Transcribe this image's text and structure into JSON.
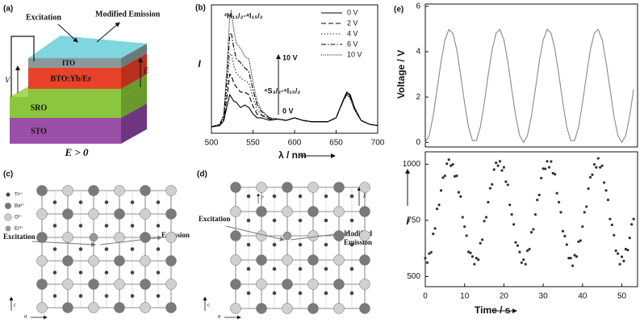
{
  "panels": {
    "a": {
      "label": "(a)",
      "layers": [
        "ITO",
        "BTO:Yb/Er",
        "SRO",
        "STO"
      ],
      "excitation": "Excitation",
      "emission": "Modified Emission",
      "voltage": "V",
      "field": "E",
      "condition": "E > 0"
    },
    "c": {
      "label": "(c)",
      "legend": [
        "Ti⁴⁺",
        "Ba²⁺",
        "O²⁻",
        "Er³⁺"
      ],
      "excitation": "Excitation",
      "emission": "Emission",
      "axis_c": "c",
      "axis_a": "a"
    },
    "d": {
      "label": "(d)",
      "excitation": "Excitation",
      "emission_lines": [
        "Modified",
        "Emission"
      ],
      "field": "E",
      "polarization": "P",
      "axis_c": "c",
      "axis_a": "a"
    }
  },
  "chart_data": [
    {
      "type": "line",
      "panel_label": "(b)",
      "xlabel": "λ / nm",
      "ylabel": "I",
      "x": [
        500,
        510,
        515,
        519,
        522,
        524,
        527,
        530,
        535,
        540,
        545,
        550,
        555,
        560,
        570,
        580,
        590,
        600,
        610,
        620,
        630,
        640,
        650,
        655,
        660,
        663,
        667,
        672,
        680,
        690,
        700
      ],
      "xlim": [
        500,
        700
      ],
      "xticks": [
        500,
        550,
        600,
        650,
        700
      ],
      "ylim": [
        0,
        100
      ],
      "annotations": [
        "²H₁₁/₂-⁴I₁₅/₂",
        "⁴S₃/₂-⁴I₁₅/₂",
        "10 V",
        "0 V"
      ],
      "legend": "upper right",
      "series": [
        {
          "name": "0 V",
          "color": "#000000",
          "dash": "solid",
          "values": [
            5,
            6,
            10,
            22,
            30,
            28,
            25,
            24,
            20,
            22,
            20,
            15,
            12,
            12,
            10,
            11,
            10,
            12,
            10,
            9,
            9,
            9,
            12,
            20,
            28,
            32,
            30,
            20,
            10,
            7,
            6
          ]
        },
        {
          "name": "2 V",
          "color": "#000000",
          "dash": "dashed",
          "values": [
            5,
            6,
            11,
            30,
            46,
            45,
            39,
            36,
            32,
            32,
            30,
            21,
            15,
            14,
            11,
            11,
            10,
            12,
            10,
            9,
            9,
            9,
            12,
            20,
            28,
            32,
            29,
            20,
            10,
            7,
            6
          ]
        },
        {
          "name": "4 V",
          "color": "#000000",
          "dash": "dotted",
          "values": [
            5,
            6,
            12,
            38,
            61,
            62,
            52,
            47,
            43,
            41,
            39,
            28,
            18,
            15,
            11,
            11,
            10,
            12,
            10,
            9,
            9,
            9,
            12,
            20,
            28,
            31,
            29,
            19,
            10,
            7,
            6
          ]
        },
        {
          "name": "6 V",
          "color": "#000000",
          "dash": "dashdot",
          "values": [
            5,
            7,
            14,
            47,
            77,
            78,
            66,
            58,
            55,
            51,
            48,
            34,
            22,
            17,
            12,
            11,
            10,
            12,
            10,
            9,
            9,
            9,
            12,
            20,
            27,
            31,
            28,
            19,
            10,
            7,
            6
          ]
        },
        {
          "name": "10 V",
          "color": "#000000",
          "dash": "densedot",
          "values": [
            5,
            7,
            15,
            55,
            92,
            95,
            80,
            70,
            66,
            60,
            58,
            40,
            25,
            18,
            12,
            11,
            10,
            12,
            10,
            9,
            9,
            9,
            12,
            20,
            27,
            30,
            27,
            18,
            10,
            7,
            6
          ]
        }
      ]
    },
    {
      "type": "line",
      "panel_label": "(e)",
      "ylabel": "Voltage / V",
      "x": [
        0,
        1,
        2,
        3,
        4,
        5,
        6,
        7,
        8,
        9,
        10,
        11,
        12,
        13,
        14,
        15,
        16,
        17,
        18,
        19,
        20,
        21,
        22,
        23,
        24,
        25,
        26,
        27,
        28,
        29,
        30,
        31,
        32,
        33,
        34,
        35,
        36,
        37,
        38,
        39,
        40,
        41,
        42,
        43,
        44,
        45,
        46,
        47,
        48,
        49,
        50,
        51,
        52,
        53
      ],
      "xlim": [
        0,
        54
      ],
      "ylim": [
        -0.2,
        6.1
      ],
      "yticks": [
        0,
        2,
        4,
        6
      ],
      "series": [
        {
          "color": "#888888",
          "dash": "solid",
          "values": [
            0,
            0.31,
            1.16,
            2.34,
            3.56,
            4.52,
            4.98,
            4.82,
            4.09,
            2.97,
            1.73,
            0.68,
            0.08,
            0.08,
            0.68,
            1.73,
            2.97,
            4.09,
            4.82,
            4.98,
            4.52,
            3.56,
            2.34,
            1.16,
            0.31,
            0,
            0.31,
            1.16,
            2.34,
            3.56,
            4.52,
            4.98,
            4.82,
            4.09,
            2.97,
            1.73,
            0.68,
            0.08,
            0.08,
            0.68,
            1.73,
            2.97,
            4.09,
            4.82,
            4.98,
            4.52,
            3.56,
            2.34,
            1.16,
            0.31,
            0,
            0.31,
            1.16,
            2.34
          ]
        }
      ]
    },
    {
      "type": "scatter",
      "xlabel": "Time / s",
      "ylabel": "I",
      "color": "#333333",
      "x": [
        0,
        0.5,
        1,
        1.5,
        2,
        2.5,
        3,
        3.5,
        4,
        4.5,
        5,
        5.5,
        6,
        6.5,
        7,
        7.5,
        8,
        8.5,
        9,
        9.5,
        10,
        10.5,
        11,
        11.5,
        12,
        12.5,
        13,
        13.5,
        14,
        14.5,
        15,
        15.5,
        16,
        16.5,
        17,
        17.5,
        18,
        18.5,
        19,
        19.5,
        20,
        20.5,
        21,
        21.5,
        22,
        22.5,
        23,
        23.5,
        24,
        24.5,
        25,
        25.5,
        26,
        26.5,
        27,
        27.5,
        28,
        28.5,
        29,
        29.5,
        30,
        30.5,
        31,
        31.5,
        32,
        32.5,
        33,
        33.5,
        34,
        34.5,
        35,
        35.5,
        36,
        36.5,
        37,
        37.5,
        38,
        38.5,
        39,
        39.5,
        40,
        40.5,
        41,
        41.5,
        42,
        42.5,
        43,
        43.5,
        44,
        44.5,
        45,
        45.5,
        46,
        46.5,
        47,
        47.5,
        48,
        48.5,
        49,
        49.5,
        50,
        50.5,
        51,
        51.5,
        52,
        52.5,
        53
      ],
      "values": [
        582,
        562,
        602,
        608,
        690,
        714,
        801,
        819,
        883,
        940,
        948,
        1002,
        1020,
        993,
        999,
        946,
        948,
        875,
        856,
        764,
        722,
        682,
        610,
        605,
        589,
        555,
        582,
        575,
        648,
        664,
        747,
        764,
        831,
        893,
        910,
        976,
        1006,
        993,
        1013,
        972,
        986,
        922,
        908,
        819,
        776,
        732,
        652,
        638,
        609,
        562,
        575,
        555,
        615,
        622,
        697,
        710,
        776,
        841,
        863,
        938,
        980,
        979,
        1013,
        986,
        1012,
        960,
        955,
        871,
        831,
        786,
        702,
        680,
        642,
        582,
        582,
        548,
        595,
        589,
        655,
        660,
        722,
        786,
        811,
        891,
        942,
        953,
        999,
        986,
        1026,
        986,
        993,
        918,
        883,
        841,
        756,
        730,
        684,
        615,
        602,
        555,
        588,
        569,
        622,
        618,
        672,
        732,
        756
      ],
      "xlim": [
        0,
        54
      ],
      "xticks": [
        0,
        10,
        20,
        30,
        40,
        50
      ],
      "ylim": [
        455,
        1055
      ],
      "yticks": [
        500,
        750,
        1000
      ]
    }
  ]
}
